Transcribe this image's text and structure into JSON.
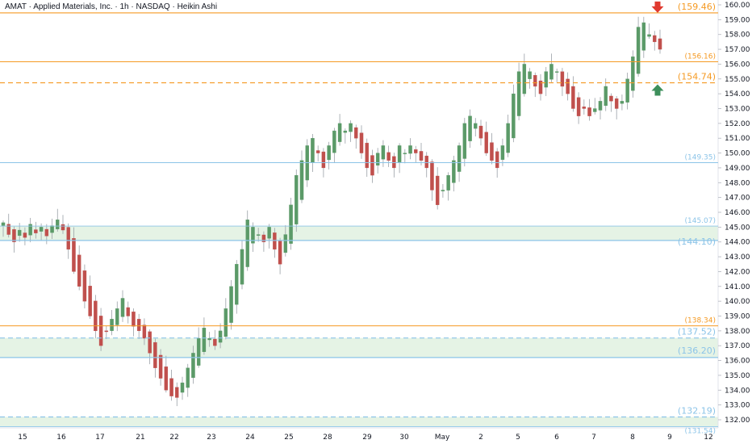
{
  "header": {
    "title": "AMAT · Applied Materials, Inc. · 1h · NASDAQ · Heikin Ashi"
  },
  "colors": {
    "up": "#5b9a68",
    "down": "#c0504d",
    "orange": "#f59a23",
    "blue": "#8cc4e8",
    "zone_fill": "#dff0de",
    "arrow_down": "#e03a2f",
    "arrow_up": "#3d8f5b"
  },
  "chart_data": {
    "type": "candlestick",
    "style": "Heikin Ashi",
    "symbol": "AMAT",
    "interval": "1h",
    "exchange": "NASDAQ",
    "ylim": [
      131.4,
      160.4
    ],
    "y_ticks": [
      "132.00",
      "133.00",
      "134.00",
      "135.00",
      "136.00",
      "137.00",
      "138.00",
      "139.00",
      "140.00",
      "141.00",
      "142.00",
      "143.00",
      "144.00",
      "145.00",
      "146.00",
      "147.00",
      "148.00",
      "149.00",
      "150.00",
      "151.00",
      "152.00",
      "153.00",
      "154.00",
      "155.00",
      "156.00",
      "157.00",
      "158.00",
      "159.00",
      "160.00"
    ],
    "x_ticks": [
      "15",
      "16",
      "17",
      "21",
      "22",
      "23",
      "24",
      "25",
      "28",
      "29",
      "30",
      "May",
      "2",
      "5",
      "6",
      "7",
      "8",
      "9",
      "12"
    ],
    "levels": [
      {
        "value": 159.46,
        "label": "(159.46)",
        "color": "orange",
        "style": "solid",
        "emphasis": true
      },
      {
        "value": 156.16,
        "label": "(156.16)",
        "color": "orange",
        "style": "solid",
        "emphasis": false
      },
      {
        "value": 154.74,
        "label": "(154.74)",
        "color": "orange",
        "style": "dashed",
        "emphasis": true
      },
      {
        "value": 149.35,
        "label": "(149.35)",
        "color": "blue",
        "style": "solid",
        "emphasis": false
      },
      {
        "value": 145.07,
        "label": "(145.07)",
        "color": "blue",
        "style": "solid",
        "emphasis": false
      },
      {
        "value": 144.1,
        "label": "(144.10)",
        "color": "blue",
        "style": "solid",
        "emphasis": true
      },
      {
        "value": 138.34,
        "label": "(138.34)",
        "color": "orange",
        "style": "solid",
        "emphasis": false
      },
      {
        "value": 137.52,
        "label": "(137.52)",
        "color": "blue",
        "style": "dashed",
        "emphasis": true
      },
      {
        "value": 136.2,
        "label": "(136.20)",
        "color": "blue",
        "style": "solid",
        "emphasis": true
      },
      {
        "value": 132.19,
        "label": "(132.19)",
        "color": "blue",
        "style": "dashed",
        "emphasis": true
      },
      {
        "value": 131.54,
        "label": "(131.54)",
        "color": "blue",
        "style": "solid",
        "emphasis": false
      }
    ],
    "zones": [
      {
        "from": 144.1,
        "to": 145.07
      },
      {
        "from": 136.2,
        "to": 137.52
      },
      {
        "from": 131.54,
        "to": 132.19
      }
    ],
    "markers": [
      {
        "type": "arrow-down",
        "at_level": 159.46
      },
      {
        "type": "arrow-up",
        "at_level": 154.74
      }
    ],
    "close_path": [
      145.3,
      144.5,
      144.0,
      144.8,
      144.3,
      145.2,
      144.6,
      145.0,
      144.4,
      145.1,
      145.5,
      144.8,
      143.5,
      142.0,
      141.0,
      140.0,
      139.0,
      138.0,
      137.0,
      138.0,
      138.8,
      139.5,
      140.2,
      139.0,
      138.3,
      138.0,
      137.5,
      136.5,
      135.5,
      134.8,
      134.0,
      133.6,
      133.5,
      134.5,
      135.5,
      136.5,
      137.5,
      138.2,
      137.5,
      137.0,
      138.0,
      139.5,
      141.0,
      142.5,
      143.5,
      145.5,
      145.0,
      144.5,
      144.0,
      145.0,
      143.5,
      142.5,
      144.5,
      146.5,
      148.5,
      149.5,
      150.5,
      151.0,
      150.0,
      149.0,
      150.5,
      151.5,
      152.0,
      151.5,
      152.0,
      151.0,
      150.0,
      149.0,
      148.5,
      150.0,
      150.5,
      149.5,
      149.0,
      150.5,
      150.0,
      150.5,
      150.0,
      149.5,
      149.0,
      147.5,
      146.5,
      147.5,
      148.5,
      149.5,
      150.5,
      152.0,
      152.5,
      152.0,
      151.0,
      150.0,
      149.5,
      149.0,
      150.5,
      152.0,
      154.0,
      155.5,
      156.0,
      155.5,
      154.5,
      154.0,
      155.5,
      156.0,
      155.5,
      154.5,
      154.0,
      153.0,
      152.5,
      153.0,
      152.5,
      153.0,
      153.5,
      154.5,
      153.5,
      153.0,
      153.5,
      155.0,
      156.5,
      158.5,
      158.8,
      158.0,
      157.5,
      157.0
    ]
  }
}
